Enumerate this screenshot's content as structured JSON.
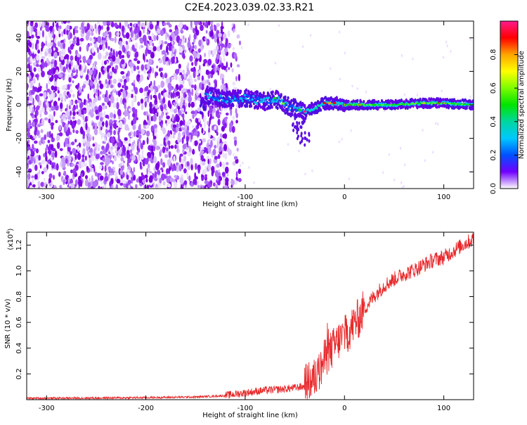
{
  "title": "C2E4.2023.039.02.33.R21",
  "colors": {
    "snr_line": "#e8282a",
    "spectrogram_dots": "#7a00e0",
    "colorbar": [
      "#ff1a8c",
      "#ff0000",
      "#ffa500",
      "#ffff00",
      "#7cfc00",
      "#00e400",
      "#00d7a0",
      "#00c8ff",
      "#0050ff",
      "#7000ff",
      "#ffffff"
    ]
  },
  "chart_data": [
    {
      "type": "heatmap",
      "name": "spectrogram",
      "xlabel": "Height of straight line (km)",
      "ylabel": "Frequency (Hz)",
      "xlim": [
        -320,
        130
      ],
      "ylim": [
        -50,
        50
      ],
      "xticks": [
        -300,
        -200,
        -100,
        0,
        100
      ],
      "yticks": [
        -40,
        -20,
        0,
        20,
        40
      ],
      "noise_region_x": [
        -320,
        -115
      ],
      "signal_track": {
        "x": [
          -140,
          -120,
          -100,
          -80,
          -70,
          -60,
          -50,
          -45,
          -40,
          -35,
          -30,
          -20,
          -10,
          0,
          20,
          50,
          80,
          100,
          130
        ],
        "freq": [
          6,
          3,
          4,
          2,
          4,
          0,
          -2,
          -3,
          -4,
          -3,
          -2,
          1,
          1,
          0,
          0,
          0,
          1,
          1,
          0
        ]
      },
      "colorbar": {
        "label": "Normalized spectral amplitude",
        "range": [
          0.0,
          1.0
        ],
        "ticks": [
          "0.0",
          "0.2",
          "0.4",
          "0.6",
          "0.8"
        ]
      }
    },
    {
      "type": "line",
      "name": "snr",
      "xlabel": "Height of straight line (km)",
      "ylabel": "SNR (10 * v/v)",
      "y_multiplier_label": "(x10",
      "y_multiplier_exp": "4",
      "xlim": [
        -320,
        130
      ],
      "ylim": [
        0,
        1.3
      ],
      "xticks": [
        -300,
        -200,
        -100,
        0,
        100
      ],
      "yticks": [
        0.2,
        0.4,
        0.6,
        0.8,
        1.0,
        1.2
      ],
      "series": [
        {
          "x": [
            -320,
            -250,
            -200,
            -150,
            -120,
            -100,
            -80,
            -60,
            -40,
            -30,
            -25,
            -20,
            -15,
            -10,
            -5,
            0,
            5,
            10,
            15,
            20,
            30,
            40,
            50,
            60,
            70,
            80,
            90,
            100,
            110,
            120,
            130
          ],
          "values": [
            0.01,
            0.012,
            0.015,
            0.02,
            0.03,
            0.05,
            0.07,
            0.08,
            0.1,
            0.15,
            0.2,
            0.3,
            0.35,
            0.4,
            0.45,
            0.48,
            0.52,
            0.58,
            0.62,
            0.7,
            0.8,
            0.88,
            0.93,
            0.97,
            1.0,
            1.04,
            1.08,
            1.1,
            1.15,
            1.2,
            1.24
          ]
        }
      ]
    }
  ]
}
